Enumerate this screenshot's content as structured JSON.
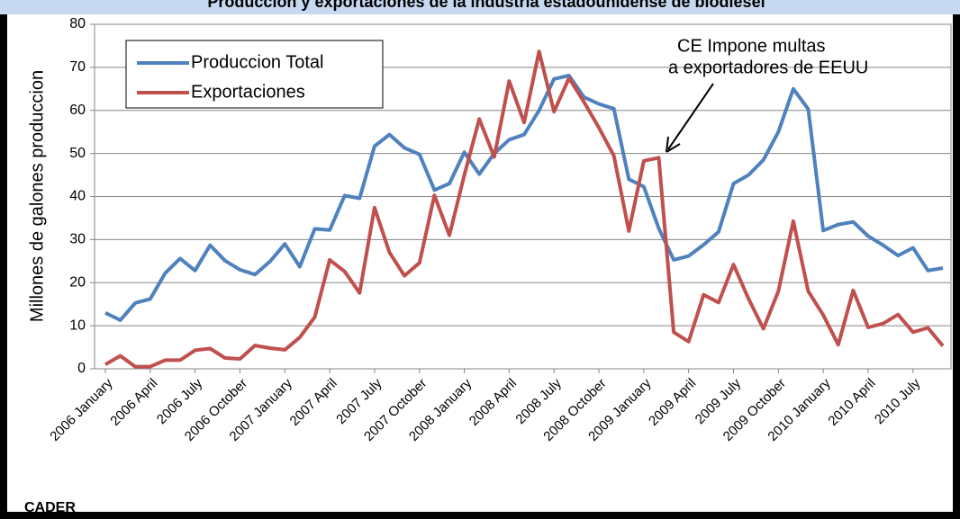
{
  "chart_data": {
    "type": "line",
    "title": "Produccion y exportaciones de la industria estadounidense de biodiesel",
    "y_label": "Millones de galones produccion",
    "source": "CADER",
    "annotations": [
      "CE Impone multas",
      "a exportadores de EEUU"
    ],
    "categories": [
      "2006 January",
      null,
      null,
      "2006 April",
      null,
      null,
      "2006 July",
      null,
      null,
      "2006 October",
      null,
      null,
      "2007 January",
      null,
      null,
      "2007 April",
      null,
      null,
      "2007 July",
      null,
      null,
      "2007 October",
      null,
      null,
      "2008 January",
      null,
      null,
      "2008 April",
      null,
      null,
      "2008 July",
      null,
      null,
      "2008 October",
      null,
      null,
      "2009 January",
      null,
      null,
      "2009 April",
      null,
      null,
      "2009 July",
      null,
      null,
      "2009 October",
      null,
      null,
      "2010 January",
      null,
      null,
      "2010 April",
      null,
      null,
      "2010 July",
      null,
      null
    ],
    "series": [
      {
        "name": "Produccion Total",
        "color": "#4f81bd",
        "values": [
          13,
          11.3,
          15.3,
          16.2,
          22.2,
          25.6,
          22.8,
          28.7,
          25.1,
          23,
          21.9,
          24.9,
          29,
          23.7,
          32.5,
          32.2,
          40.2,
          39.6,
          51.7,
          54.4,
          51.3,
          49.8,
          41.5,
          43,
          50.3,
          45.2,
          50,
          53.2,
          54.4,
          60,
          67.3,
          68.1,
          63.1,
          61.5,
          60.4,
          44,
          42.3,
          32.6,
          25.3,
          26.2,
          28.8,
          31.8,
          43,
          45,
          48.5,
          55,
          65,
          60.3,
          32.1,
          33.5,
          34.1,
          30.8,
          28.7,
          26.3,
          28.1,
          22.8,
          23.4
        ]
      },
      {
        "name": "Exportaciones",
        "color": "#c0504d",
        "values": [
          1,
          3,
          0.5,
          0.5,
          2,
          2,
          4.3,
          4.7,
          2.5,
          2.3,
          5.4,
          4.8,
          4.4,
          7.3,
          12,
          25.3,
          22.6,
          17.6,
          37.4,
          27,
          21.6,
          24.6,
          40.3,
          31,
          45,
          58,
          49.2,
          66.8,
          57.2,
          73.7,
          59.7,
          67.5,
          62,
          56,
          49.5,
          32,
          48.3,
          49,
          8.5,
          6.3,
          17.2,
          15.4,
          24.2,
          16.3,
          9.3,
          18,
          34.3,
          18,
          12.5,
          5.6,
          18.2,
          9.6,
          10.5,
          12.6,
          8.5,
          9.5,
          5.3
        ]
      }
    ],
    "ylim": [
      0,
      80
    ],
    "yticks": [
      0,
      10,
      20,
      30,
      40,
      50,
      60,
      70,
      80
    ],
    "grid": true,
    "legend": "upper left"
  }
}
